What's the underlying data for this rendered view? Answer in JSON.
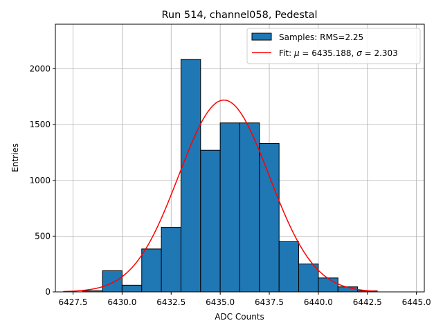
{
  "chart_data": {
    "type": "bar",
    "title": "Run 514, channel058, Pedestal",
    "xlabel": "ADC Counts",
    "ylabel": "Entries",
    "xlim": [
      6426.6,
      6445.4
    ],
    "ylim": [
      0,
      2400
    ],
    "grid": true,
    "legend_position": "top-right",
    "x_ticks": [
      6427.5,
      6430.0,
      6432.5,
      6435.0,
      6437.5,
      6440.0,
      6442.5,
      6445.0
    ],
    "x_tick_labels": [
      "6427.5",
      "6430.0",
      "6432.5",
      "6435.0",
      "6437.5",
      "6440.0",
      "6442.5",
      "6445.0"
    ],
    "y_ticks": [
      0,
      500,
      1000,
      1500,
      2000
    ],
    "y_tick_labels": [
      "0",
      "500",
      "1000",
      "1500",
      "2000"
    ],
    "bins": [
      {
        "x0": 6428,
        "x1": 6429,
        "value": 10
      },
      {
        "x0": 6429,
        "x1": 6430,
        "value": 190
      },
      {
        "x0": 6430,
        "x1": 6431,
        "value": 60
      },
      {
        "x0": 6431,
        "x1": 6432,
        "value": 385
      },
      {
        "x0": 6432,
        "x1": 6433,
        "value": 580
      },
      {
        "x0": 6433,
        "x1": 6434,
        "value": 2085
      },
      {
        "x0": 6434,
        "x1": 6435,
        "value": 1270
      },
      {
        "x0": 6435,
        "x1": 6436,
        "value": 1515
      },
      {
        "x0": 6436,
        "x1": 6437,
        "value": 1515
      },
      {
        "x0": 6437,
        "x1": 6438,
        "value": 1330
      },
      {
        "x0": 6438,
        "x1": 6439,
        "value": 450
      },
      {
        "x0": 6439,
        "x1": 6440,
        "value": 250
      },
      {
        "x0": 6440,
        "x1": 6441,
        "value": 125
      },
      {
        "x0": 6441,
        "x1": 6442,
        "value": 45
      },
      {
        "x0": 6442,
        "x1": 6443,
        "value": 10
      }
    ],
    "fit": {
      "mu": 6435.188,
      "sigma": 2.303,
      "amplitude": 1720,
      "x_range": [
        6427,
        6443
      ]
    },
    "series": [
      {
        "name": "Samples: RMS=2.25",
        "color": "#1f77b4",
        "kind": "histogram"
      },
      {
        "name": "Fit: μ = 6435.188, σ = 2.303",
        "color": "#ff0000",
        "kind": "line"
      }
    ],
    "legend": {
      "samples_label": "Samples: RMS=2.25",
      "fit_prefix": "Fit: ",
      "fit_mu_symbol": "μ",
      "fit_mu_value": " = 6435.188, ",
      "fit_sigma_symbol": "σ",
      "fit_sigma_value": " = 2.303"
    }
  }
}
